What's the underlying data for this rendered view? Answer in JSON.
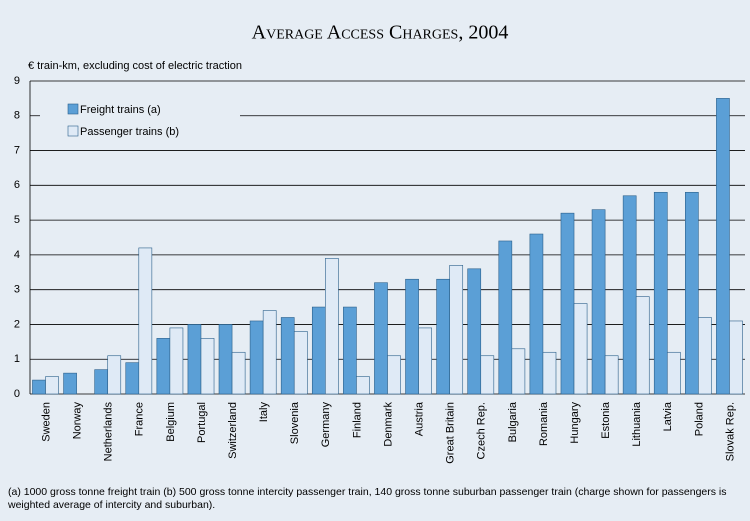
{
  "chart_data": {
    "type": "bar",
    "title": "Average Access Charges, 2004",
    "subtitle": "€ train-km, excluding cost of electric traction",
    "categories": [
      "Sweden",
      "Norway",
      "Netherlands",
      "France",
      "Belgium",
      "Portugal",
      "Switzerland",
      "Italy",
      "Slovenia",
      "Germany",
      "Finland",
      "Denmark",
      "Austria",
      "Great Britain",
      "Czech Rep.",
      "Bulgaria",
      "Romania",
      "Hungary",
      "Estonia",
      "Lithuania",
      "Latvia",
      "Poland",
      "Slovak Rep."
    ],
    "series": [
      {
        "name": "Freight trains (a)",
        "color": "#5b9fd6",
        "values": [
          0.4,
          0.6,
          0.7,
          0.9,
          1.6,
          2.0,
          2.0,
          2.1,
          2.2,
          2.5,
          2.5,
          3.2,
          3.3,
          3.3,
          3.6,
          4.4,
          4.6,
          5.2,
          5.3,
          5.7,
          5.8,
          5.8,
          8.5
        ]
      },
      {
        "name": "Passenger trains (b)",
        "color": "#dfeaf6",
        "values": [
          0.5,
          null,
          1.1,
          4.2,
          1.9,
          1.6,
          1.2,
          2.4,
          1.8,
          3.9,
          0.5,
          1.1,
          1.9,
          3.7,
          1.1,
          1.3,
          1.2,
          2.6,
          1.1,
          2.8,
          1.2,
          2.2,
          2.1
        ]
      }
    ],
    "ylim": [
      0,
      9
    ],
    "yticks": [
      0,
      1,
      2,
      3,
      4,
      5,
      6,
      7,
      8,
      9
    ],
    "grid": true,
    "legend": "upper left",
    "footnote": "(a) 1000 gross tonne freight train    (b) 500 gross tonne intercity passenger train, 140 gross tonne suburban passenger train (charge shown for passengers is weighted average of intercity and suburban)."
  }
}
